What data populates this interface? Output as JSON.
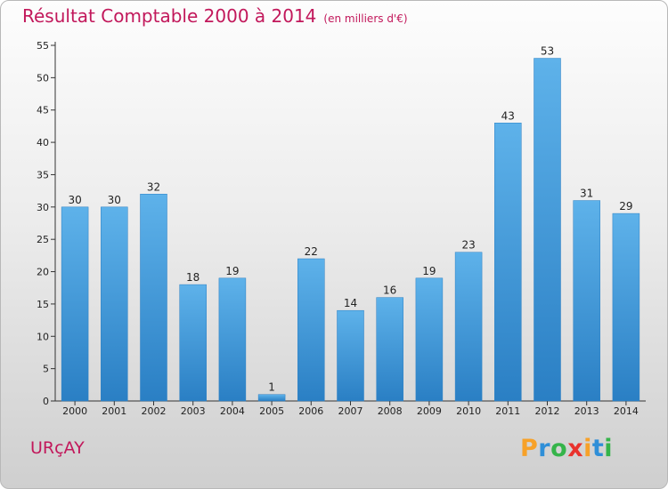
{
  "title": "Résultat Comptable 2000 à 2014",
  "subtitle": "(en milliers d'€)",
  "location": "URçAY",
  "logo": {
    "letters": [
      "P",
      "r",
      "o",
      "x",
      "i",
      "t",
      "i"
    ],
    "colors": [
      "#f7a128",
      "#2f8fd8",
      "#35b44a",
      "#e9322d",
      "#f7a128",
      "#2f8fd8",
      "#35b44a"
    ]
  },
  "colors": {
    "accent": "#c2185b",
    "bar_light": "#5aaee8",
    "bar_dark": "#2a7fc4"
  },
  "chart_data": {
    "type": "bar",
    "title": "Résultat Comptable 2000 à 2014",
    "subtitle": "(en milliers d'€)",
    "xlabel": "",
    "ylabel": "",
    "categories": [
      "2000",
      "2001",
      "2002",
      "2003",
      "2004",
      "2005",
      "2006",
      "2007",
      "2008",
      "2009",
      "2010",
      "2011",
      "2012",
      "2013",
      "2014"
    ],
    "values": [
      30,
      30,
      32,
      18,
      19,
      1,
      22,
      14,
      16,
      19,
      23,
      43,
      53,
      31,
      29
    ],
    "ylim": [
      0,
      55
    ],
    "yticks": [
      0,
      5,
      10,
      15,
      20,
      25,
      30,
      35,
      40,
      45,
      50,
      55
    ],
    "grid": false
  }
}
